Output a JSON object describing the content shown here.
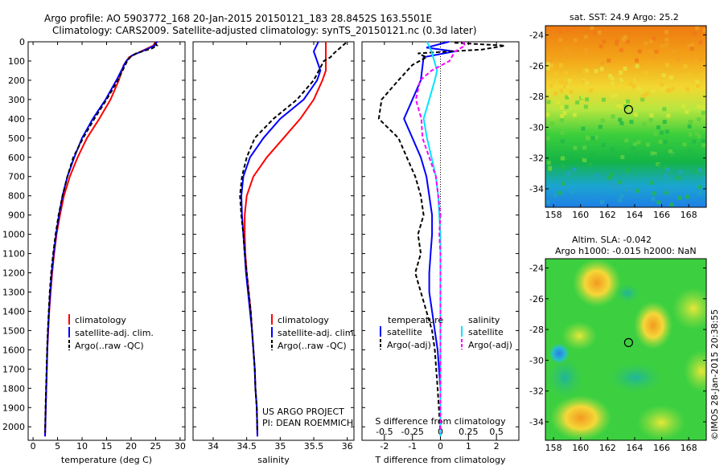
{
  "header": {
    "line1": "Argo profile: AO 5903772_168 20-Jan-2015 20150121_183 28.8452S 163.5501E",
    "line2": "Climatology: CARS2009. Satellite-adjusted climatology: synTS_20150121.nc (0.3d later)"
  },
  "credit": {
    "line1": "US ARGO PROJECT",
    "line2": "PI: DEAN ROEMMICH",
    "imos": "©IMOS 28-Jan-2015 20:38:55"
  },
  "colors": {
    "climatology": "#ff0000",
    "satellite": "#0000ff",
    "argo": "#000000",
    "sat_diff": "#00e5ff",
    "argo_adj_diff": "#ff00ff"
  },
  "depth_axis": {
    "ticks": [
      "0",
      "100",
      "200",
      "300",
      "400",
      "500",
      "600",
      "700",
      "800",
      "900",
      "1000",
      "1100",
      "1200",
      "1300",
      "1400",
      "1500",
      "1600",
      "1700",
      "1800",
      "1900",
      "2000"
    ],
    "range": [
      0,
      2070
    ]
  },
  "chart_data": [
    {
      "type": "line",
      "name": "temperature-profile",
      "xlabel": "temperature (deg C)",
      "xlim": [
        -1,
        31
      ],
      "xticks": [
        "0",
        "5",
        "10",
        "15",
        "20",
        "25",
        "30"
      ],
      "xtick_values": [
        0,
        5,
        10,
        15,
        20,
        25,
        30
      ],
      "legend": [
        "climatology",
        "satellite-adj. clim.",
        "Argo(..raw -QC)"
      ],
      "series": [
        {
          "name": "climatology",
          "values": [
            [
              25,
              0
            ],
            [
              24.5,
              20
            ],
            [
              22,
              50
            ],
            [
              19.6,
              80
            ],
            [
              18.5,
              120
            ],
            [
              17.5,
              200
            ],
            [
              15.8,
              300
            ],
            [
              13.5,
              400
            ],
            [
              11,
              500
            ],
            [
              9.1,
              600
            ],
            [
              7.5,
              700
            ],
            [
              6.3,
              800
            ],
            [
              5.5,
              900
            ],
            [
              4.8,
              1000
            ],
            [
              4.3,
              1100
            ],
            [
              3.9,
              1200
            ],
            [
              3.6,
              1300
            ],
            [
              3.3,
              1400
            ],
            [
              3.1,
              1500
            ],
            [
              2.9,
              1600
            ],
            [
              2.8,
              1700
            ],
            [
              2.7,
              1800
            ],
            [
              2.6,
              1900
            ],
            [
              2.45,
              2050
            ]
          ]
        },
        {
          "name": "satellite-adj. clim.",
          "values": [
            [
              25.3,
              0
            ],
            [
              24.8,
              20
            ],
            [
              22.2,
              50
            ],
            [
              20.2,
              70
            ],
            [
              19,
              100
            ],
            [
              17,
              200
            ],
            [
              14.8,
              300
            ],
            [
              12.2,
              400
            ],
            [
              10,
              500
            ],
            [
              8.4,
              600
            ],
            [
              7,
              700
            ],
            [
              6,
              800
            ],
            [
              5.3,
              900
            ],
            [
              4.7,
              1000
            ],
            [
              4.2,
              1100
            ],
            [
              3.8,
              1200
            ],
            [
              3.5,
              1300
            ],
            [
              3.25,
              1400
            ],
            [
              3.05,
              1500
            ],
            [
              2.9,
              1600
            ],
            [
              2.8,
              1700
            ],
            [
              2.7,
              1800
            ],
            [
              2.6,
              1900
            ],
            [
              2.45,
              2050
            ]
          ]
        },
        {
          "name": "Argo(..raw -QC)",
          "values": [
            [
              24.8,
              5
            ],
            [
              25.3,
              20
            ],
            [
              24.2,
              35
            ],
            [
              21,
              60
            ],
            [
              19.8,
              80
            ],
            [
              19.2,
              100
            ],
            [
              17.3,
              200
            ],
            [
              15,
              300
            ],
            [
              12.5,
              400
            ],
            [
              10.2,
              500
            ],
            [
              8.2,
              600
            ],
            [
              7,
              700
            ],
            [
              6,
              800
            ],
            [
              5.2,
              900
            ],
            [
              4.6,
              1000
            ],
            [
              4.1,
              1100
            ],
            [
              3.7,
              1200
            ],
            [
              3.4,
              1300
            ],
            [
              3.2,
              1400
            ],
            [
              3.0,
              1500
            ],
            [
              2.85,
              1600
            ],
            [
              2.75,
              1700
            ],
            [
              2.65,
              1800
            ],
            [
              2.55,
              1900
            ],
            [
              2.45,
              2030
            ]
          ]
        }
      ]
    },
    {
      "type": "line",
      "name": "salinity-profile",
      "xlabel": "salinity",
      "xlim": [
        33.7,
        36.1
      ],
      "xticks": [
        "34",
        "34.5",
        "35",
        "35.5",
        "36"
      ],
      "xtick_values": [
        34,
        34.5,
        35,
        35.5,
        36
      ],
      "legend": [
        "climatology",
        "satellite-adj. clim.",
        "Argo(..raw -QC)"
      ],
      "series": [
        {
          "name": "climatology",
          "values": [
            [
              35.68,
              0
            ],
            [
              35.68,
              150
            ],
            [
              35.63,
              200
            ],
            [
              35.5,
              300
            ],
            [
              35.3,
              400
            ],
            [
              35.05,
              500
            ],
            [
              34.8,
              600
            ],
            [
              34.6,
              700
            ],
            [
              34.5,
              800
            ],
            [
              34.47,
              900
            ],
            [
              34.47,
              1000
            ],
            [
              34.48,
              1100
            ],
            [
              34.5,
              1200
            ],
            [
              34.53,
              1300
            ],
            [
              34.56,
              1400
            ],
            [
              34.58,
              1500
            ],
            [
              34.6,
              1600
            ],
            [
              34.62,
              1700
            ],
            [
              34.63,
              1800
            ],
            [
              34.65,
              1900
            ],
            [
              34.66,
              2050
            ]
          ]
        },
        {
          "name": "satellite-adj. clim.",
          "values": [
            [
              35.57,
              0
            ],
            [
              35.5,
              50
            ],
            [
              35.55,
              100
            ],
            [
              35.6,
              150
            ],
            [
              35.55,
              200
            ],
            [
              35.35,
              300
            ],
            [
              35.0,
              400
            ],
            [
              34.75,
              500
            ],
            [
              34.55,
              600
            ],
            [
              34.45,
              700
            ],
            [
              34.42,
              800
            ],
            [
              34.43,
              900
            ],
            [
              34.45,
              1000
            ],
            [
              34.47,
              1100
            ],
            [
              34.49,
              1200
            ],
            [
              34.52,
              1300
            ],
            [
              34.55,
              1400
            ],
            [
              34.58,
              1500
            ],
            [
              34.6,
              1600
            ],
            [
              34.62,
              1700
            ],
            [
              34.63,
              1800
            ],
            [
              34.65,
              1900
            ],
            [
              34.66,
              2050
            ]
          ]
        },
        {
          "name": "Argo(..raw -QC)",
          "values": [
            [
              35.98,
              5
            ],
            [
              35.9,
              30
            ],
            [
              35.8,
              60
            ],
            [
              35.75,
              80
            ],
            [
              35.65,
              100
            ],
            [
              35.5,
              200
            ],
            [
              35.25,
              300
            ],
            [
              34.9,
              400
            ],
            [
              34.62,
              500
            ],
            [
              34.5,
              600
            ],
            [
              34.43,
              700
            ],
            [
              34.4,
              800
            ],
            [
              34.42,
              900
            ],
            [
              34.45,
              1000
            ],
            [
              34.47,
              1100
            ],
            [
              34.5,
              1200
            ],
            [
              34.53,
              1300
            ],
            [
              34.56,
              1400
            ],
            [
              34.58,
              1500
            ],
            [
              34.6,
              1600
            ],
            [
              34.62,
              1700
            ],
            [
              34.63,
              1800
            ],
            [
              34.65,
              1900
            ],
            [
              34.66,
              2030
            ]
          ]
        }
      ]
    },
    {
      "type": "line",
      "name": "difference-profile",
      "xlabel": "T difference from climatology",
      "xlabel_top": "S difference from climatology",
      "xlim": [
        -2.8,
        2.8
      ],
      "xticks": [
        "-2",
        "-1",
        "0",
        "1",
        "2"
      ],
      "xtick_values": [
        -2,
        -1,
        0,
        1,
        2
      ],
      "sticks": [
        "-0.5",
        "-0.25",
        "0",
        "0.25",
        "0.5"
      ],
      "stick_values": [
        -0.5,
        -0.25,
        0,
        0.25,
        0.5
      ],
      "legend_t": {
        "title": "temperature",
        "items": [
          "satellite",
          "Argo(-adj)"
        ]
      },
      "legend_s": {
        "title": "salinity",
        "items": [
          "satellite",
          "Argo(-adj)"
        ]
      },
      "series": [
        {
          "name": "T satellite",
          "values": [
            [
              0.3,
              0
            ],
            [
              -0.5,
              30
            ],
            [
              0.5,
              50
            ],
            [
              -0.6,
              80
            ],
            [
              -0.7,
              200
            ],
            [
              -1.0,
              300
            ],
            [
              -1.3,
              400
            ],
            [
              -1.0,
              500
            ],
            [
              -0.7,
              600
            ],
            [
              -0.5,
              700
            ],
            [
              -0.4,
              800
            ],
            [
              -0.3,
              900
            ],
            [
              -0.3,
              1000
            ],
            [
              -0.35,
              1100
            ],
            [
              -0.4,
              1200
            ],
            [
              -0.4,
              1300
            ],
            [
              -0.3,
              1400
            ],
            [
              -0.2,
              1500
            ],
            [
              -0.1,
              1600
            ],
            [
              0,
              1800
            ],
            [
              0,
              2050
            ]
          ]
        },
        {
          "name": "T Argo(-adj)",
          "values": [
            [
              0.5,
              5
            ],
            [
              2.3,
              20
            ],
            [
              1.5,
              40
            ],
            [
              -0.8,
              60
            ],
            [
              -0.5,
              80
            ],
            [
              -1.0,
              120
            ],
            [
              -1.5,
              200
            ],
            [
              -2.1,
              300
            ],
            [
              -2.2,
              400
            ],
            [
              -1.5,
              500
            ],
            [
              -1.2,
              600
            ],
            [
              -0.9,
              700
            ],
            [
              -0.7,
              800
            ],
            [
              -0.6,
              900
            ],
            [
              -0.8,
              1000
            ],
            [
              -0.7,
              1100
            ],
            [
              -0.9,
              1200
            ],
            [
              -0.7,
              1300
            ],
            [
              -0.5,
              1400
            ],
            [
              -0.3,
              1500
            ],
            [
              -0.2,
              1600
            ],
            [
              -0.1,
              1800
            ],
            [
              0,
              2030
            ]
          ]
        },
        {
          "name": "S satellite",
          "values": [
            [
              -0.12,
              0
            ],
            [
              -0.08,
              50
            ],
            [
              -0.03,
              150
            ],
            [
              -0.05,
              200
            ],
            [
              -0.1,
              300
            ],
            [
              -0.15,
              400
            ],
            [
              -0.12,
              500
            ],
            [
              -0.08,
              600
            ],
            [
              -0.04,
              700
            ],
            [
              -0.02,
              800
            ],
            [
              0,
              1000
            ],
            [
              0,
              2050
            ]
          ]
        },
        {
          "name": "S Argo(-adj)",
          "values": [
            [
              0.2,
              0
            ],
            [
              0.22,
              20
            ],
            [
              0.13,
              50
            ],
            [
              0.08,
              100
            ],
            [
              -0.08,
              150
            ],
            [
              -0.18,
              200
            ],
            [
              -0.22,
              300
            ],
            [
              -0.17,
              400
            ],
            [
              -0.16,
              500
            ],
            [
              -0.1,
              600
            ],
            [
              -0.04,
              700
            ],
            [
              -0.02,
              800
            ],
            [
              0,
              900
            ],
            [
              -0.01,
              1000
            ],
            [
              0,
              1100
            ],
            [
              0,
              2030
            ]
          ]
        }
      ]
    },
    {
      "type": "heatmap",
      "name": "sst-map",
      "title": "sat. SST: 24.9  Argo: 25.2",
      "xticks": [
        "158",
        "160",
        "162",
        "164",
        "166",
        "168"
      ],
      "xtick_values": [
        158,
        160,
        162,
        164,
        166,
        168
      ],
      "yticks": [
        "-24",
        "-26",
        "-28",
        "-30",
        "-32",
        "-34"
      ],
      "ytick_values": [
        -24,
        -26,
        -28,
        -30,
        -32,
        -34
      ],
      "xlim": [
        157.4,
        169.3
      ],
      "ylim": [
        -35.2,
        -23.4
      ],
      "marker": [
        163.55,
        -28.85
      ]
    },
    {
      "type": "heatmap",
      "name": "sla-map",
      "title1": "Altim. SLA: -0.042",
      "title2": "Argo h1000: -0.015 h2000: NaN",
      "xticks": [
        "158",
        "160",
        "162",
        "164",
        "166",
        "168"
      ],
      "xtick_values": [
        158,
        160,
        162,
        164,
        166,
        168
      ],
      "yticks": [
        "-24",
        "-26",
        "-28",
        "-30",
        "-32",
        "-34"
      ],
      "ytick_values": [
        -24,
        -26,
        -28,
        -30,
        -32,
        -34
      ],
      "xlim": [
        157.4,
        169.3
      ],
      "ylim": [
        -35.2,
        -23.4
      ],
      "marker": [
        163.55,
        -28.85
      ]
    }
  ]
}
